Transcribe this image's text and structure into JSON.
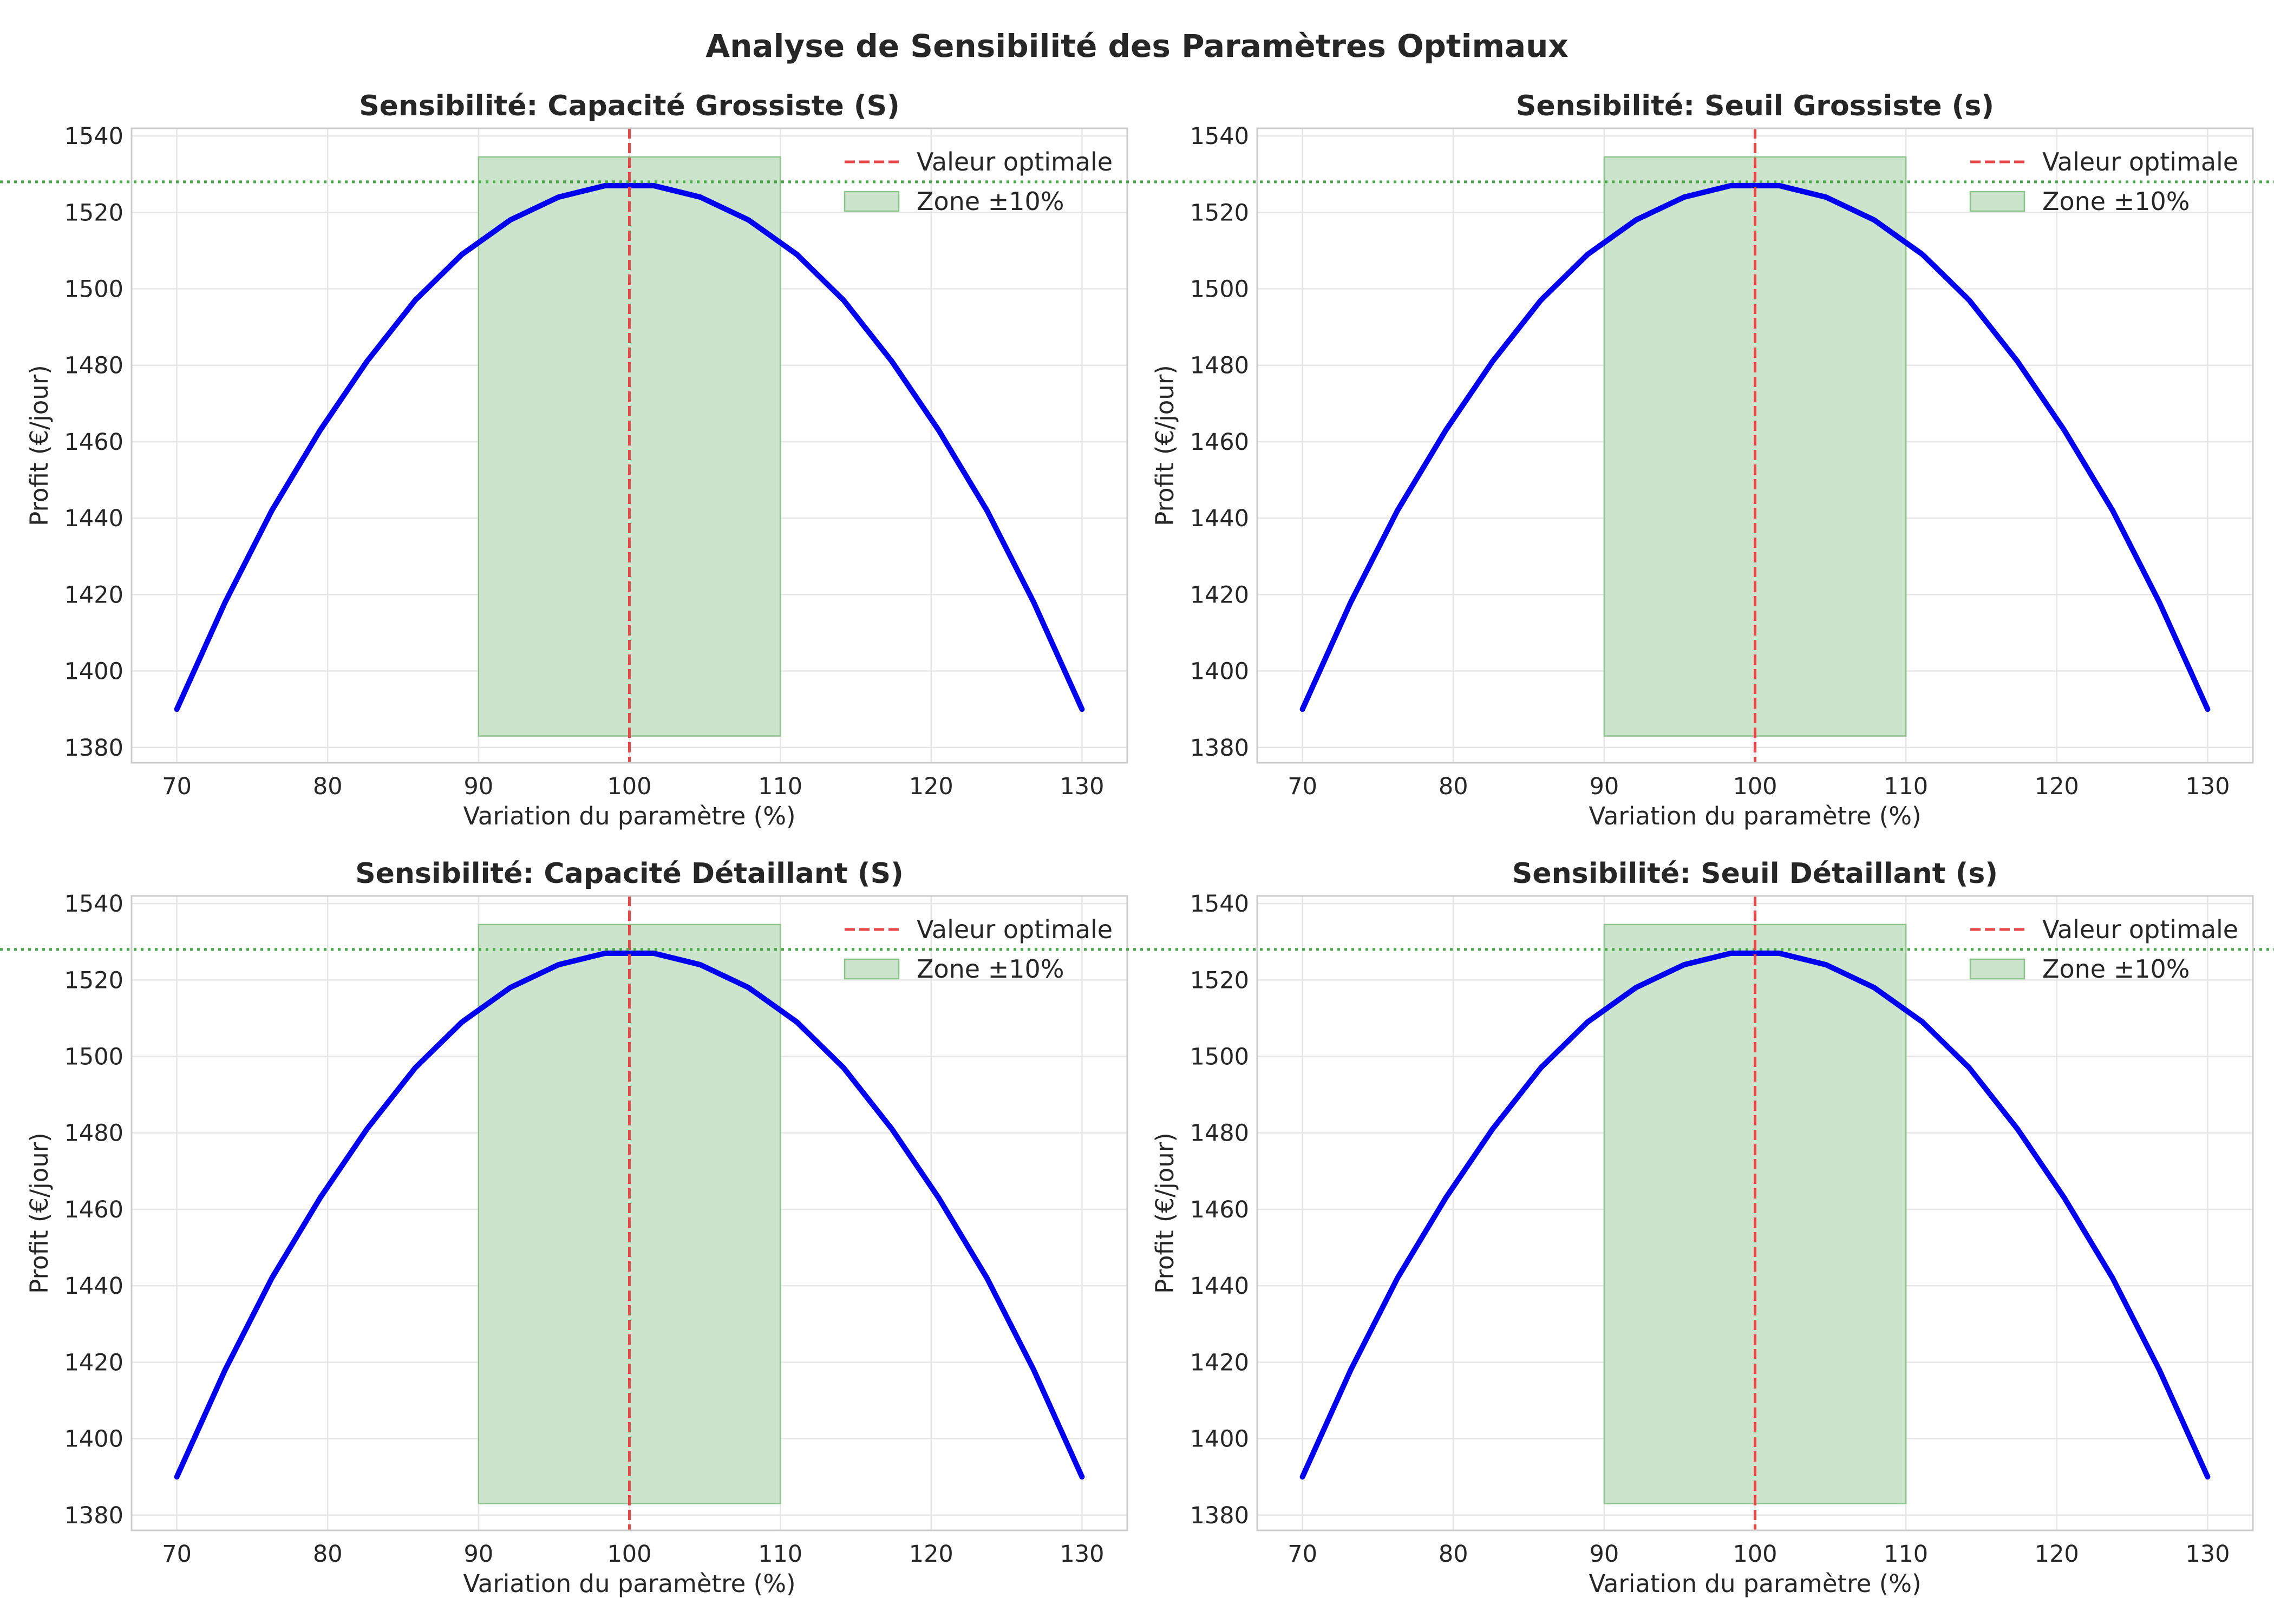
{
  "figure_title": "Analyse de Sensibilité des Paramètres Optimaux",
  "colors": {
    "curve": "#0000ee",
    "optimal_line": "#e8474a",
    "zone_fill": "#cce4cc",
    "zone_edge": "#8cc48c",
    "reference_line": "#4aa84a",
    "grid": "#e6e6e6",
    "frame": "#cccccc",
    "text": "#262626"
  },
  "chart_data": [
    {
      "type": "line",
      "title": "Sensibilité: Capacité Grossiste (S)",
      "xlabel": "Variation du paramètre (%)",
      "ylabel": "Profit (€/jour)",
      "xlim": [
        67,
        133
      ],
      "ylim": [
        1376,
        1542
      ],
      "xticks": [
        70,
        80,
        90,
        100,
        110,
        120,
        130
      ],
      "yticks": [
        1380,
        1400,
        1420,
        1440,
        1460,
        1480,
        1500,
        1520,
        1540
      ],
      "grid": true,
      "legend_position": "top-right",
      "legend": [
        "Valeur optimale",
        "Zone ±10%"
      ],
      "x": [
        70,
        73.2,
        76.3,
        79.5,
        82.6,
        85.8,
        88.9,
        92.1,
        95.3,
        98.4,
        101.6,
        104.7,
        107.9,
        111.1,
        114.2,
        117.4,
        120.5,
        123.7,
        126.8,
        130
      ],
      "y": [
        1390,
        1418,
        1442,
        1463,
        1481,
        1497,
        1509,
        1518,
        1524,
        1527,
        1527,
        1524,
        1518,
        1509,
        1497,
        1481,
        1463,
        1442,
        1418,
        1390
      ],
      "optimal_x": 100,
      "optimal_profit": 1528,
      "zone_x": [
        90,
        110
      ],
      "zone_y": [
        1383,
        1534.5
      ]
    },
    {
      "type": "line",
      "title": "Sensibilité: Seuil Grossiste (s)",
      "xlabel": "Variation du paramètre (%)",
      "ylabel": "Profit (€/jour)",
      "xlim": [
        67,
        133
      ],
      "ylim": [
        1376,
        1542
      ],
      "xticks": [
        70,
        80,
        90,
        100,
        110,
        120,
        130
      ],
      "yticks": [
        1380,
        1400,
        1420,
        1440,
        1460,
        1480,
        1500,
        1520,
        1540
      ],
      "grid": true,
      "legend_position": "top-right",
      "legend": [
        "Valeur optimale",
        "Zone ±10%"
      ],
      "x": [
        70,
        73.2,
        76.3,
        79.5,
        82.6,
        85.8,
        88.9,
        92.1,
        95.3,
        98.4,
        101.6,
        104.7,
        107.9,
        111.1,
        114.2,
        117.4,
        120.5,
        123.7,
        126.8,
        130
      ],
      "y": [
        1390,
        1418,
        1442,
        1463,
        1481,
        1497,
        1509,
        1518,
        1524,
        1527,
        1527,
        1524,
        1518,
        1509,
        1497,
        1481,
        1463,
        1442,
        1418,
        1390
      ],
      "optimal_x": 100,
      "optimal_profit": 1528,
      "zone_x": [
        90,
        110
      ],
      "zone_y": [
        1383,
        1534.5
      ]
    },
    {
      "type": "line",
      "title": "Sensibilité: Capacité Détaillant (S)",
      "xlabel": "Variation du paramètre (%)",
      "ylabel": "Profit (€/jour)",
      "xlim": [
        67,
        133
      ],
      "ylim": [
        1376,
        1542
      ],
      "xticks": [
        70,
        80,
        90,
        100,
        110,
        120,
        130
      ],
      "yticks": [
        1380,
        1400,
        1420,
        1440,
        1460,
        1480,
        1500,
        1520,
        1540
      ],
      "grid": true,
      "legend_position": "top-right",
      "legend": [
        "Valeur optimale",
        "Zone ±10%"
      ],
      "x": [
        70,
        73.2,
        76.3,
        79.5,
        82.6,
        85.8,
        88.9,
        92.1,
        95.3,
        98.4,
        101.6,
        104.7,
        107.9,
        111.1,
        114.2,
        117.4,
        120.5,
        123.7,
        126.8,
        130
      ],
      "y": [
        1390,
        1418,
        1442,
        1463,
        1481,
        1497,
        1509,
        1518,
        1524,
        1527,
        1527,
        1524,
        1518,
        1509,
        1497,
        1481,
        1463,
        1442,
        1418,
        1390
      ],
      "optimal_x": 100,
      "optimal_profit": 1528,
      "zone_x": [
        90,
        110
      ],
      "zone_y": [
        1383,
        1534.5
      ]
    },
    {
      "type": "line",
      "title": "Sensibilité: Seuil Détaillant (s)",
      "xlabel": "Variation du paramètre (%)",
      "ylabel": "Profit (€/jour)",
      "xlim": [
        67,
        133
      ],
      "ylim": [
        1376,
        1542
      ],
      "xticks": [
        70,
        80,
        90,
        100,
        110,
        120,
        130
      ],
      "yticks": [
        1380,
        1400,
        1420,
        1440,
        1460,
        1480,
        1500,
        1520,
        1540
      ],
      "grid": true,
      "legend_position": "top-right",
      "legend": [
        "Valeur optimale",
        "Zone ±10%"
      ],
      "x": [
        70,
        73.2,
        76.3,
        79.5,
        82.6,
        85.8,
        88.9,
        92.1,
        95.3,
        98.4,
        101.6,
        104.7,
        107.9,
        111.1,
        114.2,
        117.4,
        120.5,
        123.7,
        126.8,
        130
      ],
      "y": [
        1390,
        1418,
        1442,
        1463,
        1481,
        1497,
        1509,
        1518,
        1524,
        1527,
        1527,
        1524,
        1518,
        1509,
        1497,
        1481,
        1463,
        1442,
        1418,
        1390
      ],
      "optimal_x": 100,
      "optimal_profit": 1528,
      "zone_x": [
        90,
        110
      ],
      "zone_y": [
        1383,
        1534.5
      ]
    }
  ]
}
